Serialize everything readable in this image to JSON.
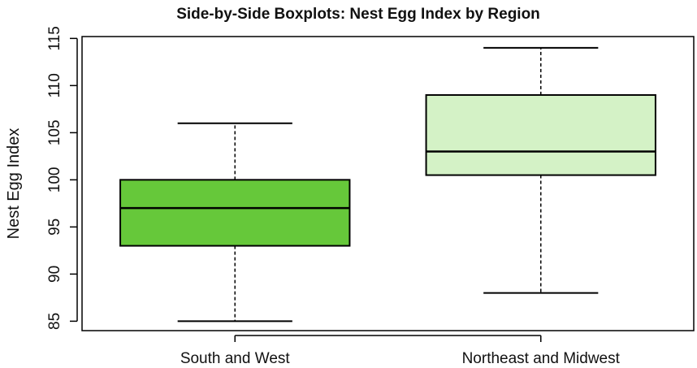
{
  "chart_data": {
    "type": "boxplot",
    "title": "Side-by-Side Boxplots: Nest Egg Index by Region",
    "xlabel": "",
    "ylabel": "Nest Egg Index",
    "ylim": [
      84,
      115.2
    ],
    "yticks": [
      85,
      90,
      95,
      100,
      105,
      110,
      115
    ],
    "categories": [
      "South and West",
      "Northeast and Midwest"
    ],
    "boxes": [
      {
        "category": "South and West",
        "whisker_low": 85,
        "q1": 93,
        "median": 97,
        "q3": 100,
        "whisker_high": 106,
        "color": "#66c83a"
      },
      {
        "category": "Northeast and Midwest",
        "whisker_low": 88,
        "q1": 100.5,
        "median": 103,
        "q3": 109,
        "whisker_high": 114,
        "color": "#d4f2c6"
      }
    ],
    "grid": false
  }
}
